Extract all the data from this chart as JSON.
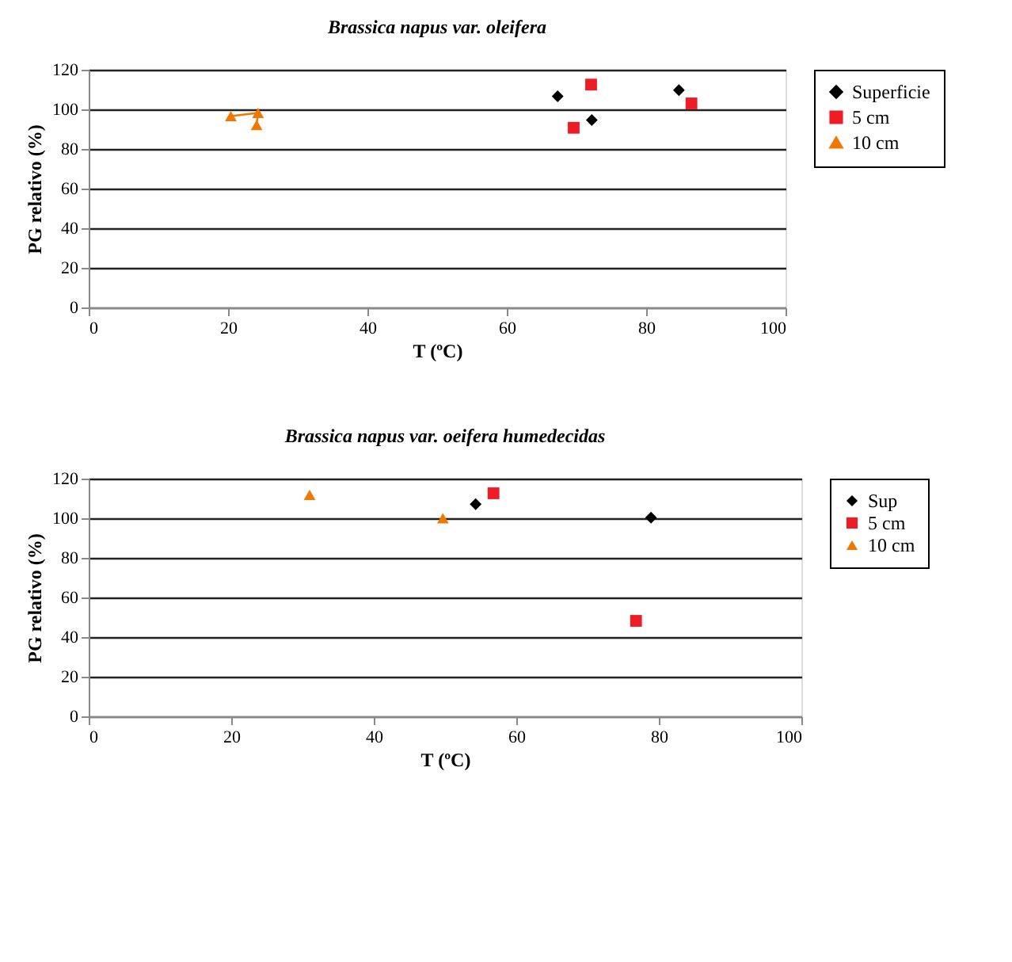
{
  "chart_data": [
    {
      "type": "scatter",
      "title": "Brassica napus var. oleifera",
      "xlabel": "T (ºC)",
      "ylabel": "PG relativo (%)",
      "xlim": [
        0,
        100
      ],
      "xticks": [
        0,
        20,
        40,
        60,
        80,
        100
      ],
      "ylim": [
        0,
        120
      ],
      "yticks": [
        0,
        20,
        40,
        60,
        80,
        100,
        120
      ],
      "grid": "y",
      "legend": "right",
      "series": [
        {
          "name": "Superficie",
          "color": "#000000",
          "marker": "diamond",
          "x": [
            67.3,
            72.2,
            84.7
          ],
          "values": [
            106.6,
            94.6,
            109.7
          ]
        },
        {
          "name": "5 cm",
          "color": "#ee1c25",
          "marker": "square",
          "x": [
            69.6,
            72.1,
            86.5
          ],
          "values": [
            90.7,
            112.5,
            103
          ]
        },
        {
          "name": "10 cm",
          "type": "line",
          "color": "#f07800",
          "marker": "triangle",
          "x": [
            20.4,
            24.3,
            24.1
          ],
          "values": [
            96.6,
            98.2,
            92.1
          ]
        }
      ]
    },
    {
      "type": "scatter",
      "title": "Brassica napus var. oeifera humedecidas",
      "xlabel": "T (ºC)",
      "ylabel": "PG relativo (%)",
      "xlim": [
        0,
        100
      ],
      "xticks": [
        0,
        20,
        40,
        60,
        80,
        100
      ],
      "ylim": [
        0,
        120
      ],
      "yticks": [
        0,
        20,
        40,
        60,
        80,
        100,
        120
      ],
      "grid": "y",
      "legend": "right",
      "series": [
        {
          "name": "Sup",
          "color": "#000000",
          "marker": "diamond",
          "x": [
            54.3,
            78.9
          ],
          "values": [
            107.1,
            100.3
          ]
        },
        {
          "name": "5 cm",
          "color": "#ee1c25",
          "marker": "square",
          "x": [
            56.8,
            76.8
          ],
          "values": [
            112.6,
            48.2
          ]
        },
        {
          "name": "10 cm",
          "color": "#f07800",
          "marker": "triangle",
          "x": [
            31.0,
            49.7
          ],
          "values": [
            111.8,
            100
          ]
        }
      ]
    }
  ]
}
